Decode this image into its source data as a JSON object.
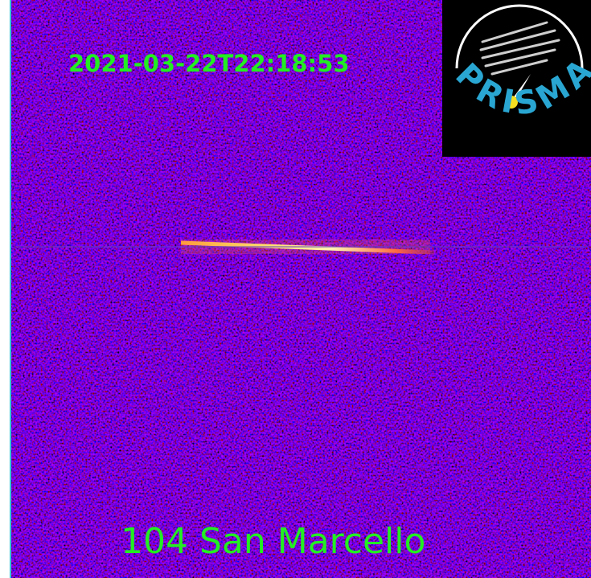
{
  "timestamp": "2021-03-22T22:18:53",
  "station": "104 San Marcello",
  "logo": {
    "text": "PRISMA"
  }
}
